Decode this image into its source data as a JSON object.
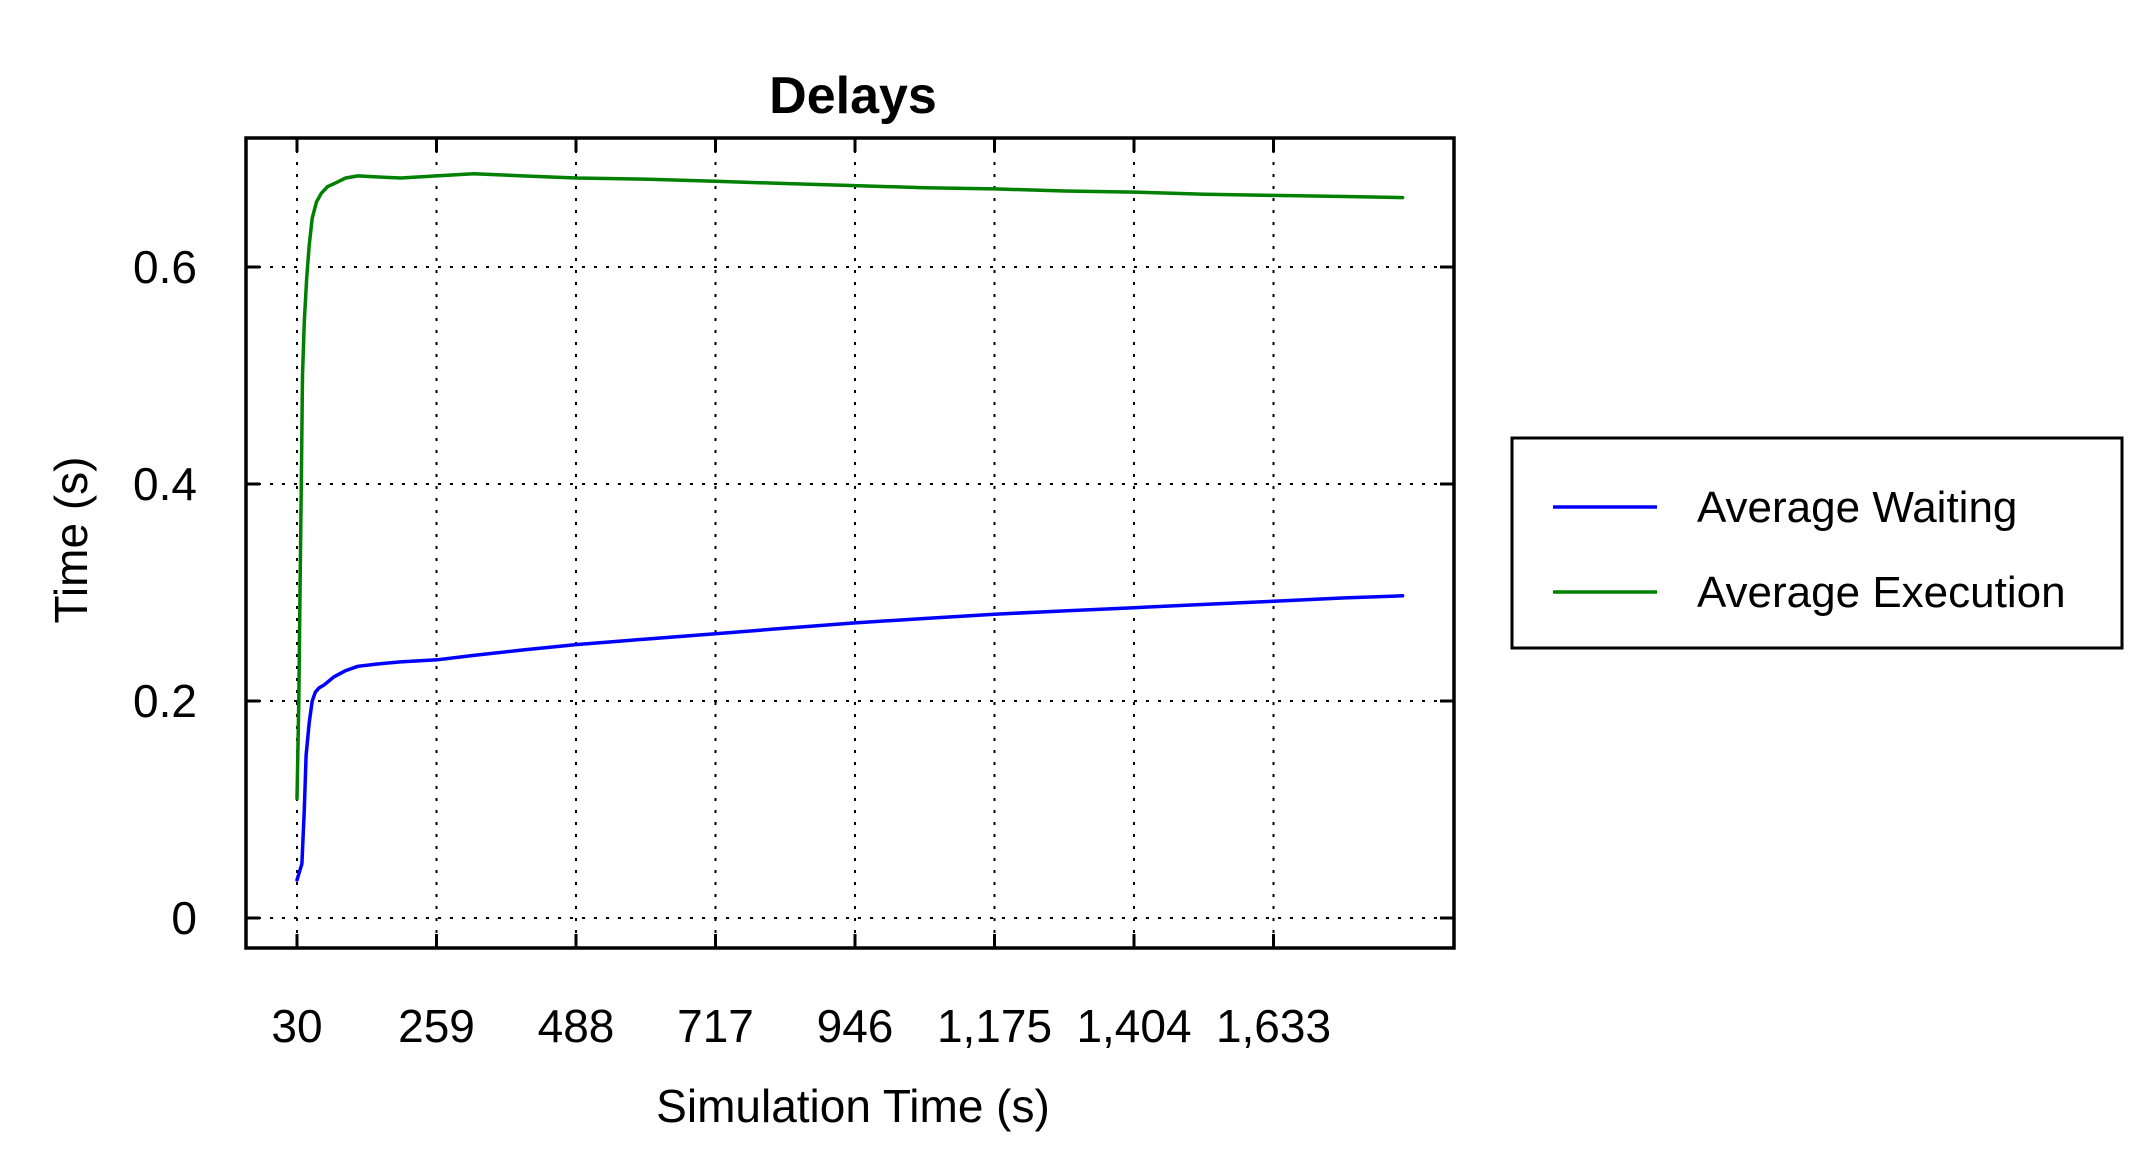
{
  "chart_data": {
    "type": "line",
    "title": "Delays",
    "xlabel": "Simulation Time (s)",
    "ylabel": "Time (s)",
    "xlim": [
      30,
      1850
    ],
    "ylim": [
      -0.03,
      0.72
    ],
    "x_ticks": [
      30,
      259,
      488,
      717,
      946,
      1175,
      1404,
      1633
    ],
    "x_tick_labels": [
      "30",
      "259",
      "488",
      "717",
      "946",
      "1,175",
      "1,404",
      "1,633"
    ],
    "y_ticks": [
      0,
      0.2,
      0.4,
      0.6
    ],
    "y_tick_labels": [
      "0",
      "0.2",
      "0.4",
      "0.6"
    ],
    "grid": true,
    "legend_position": "right-outside",
    "series": [
      {
        "name": "Average Waiting",
        "color": "#0000ff",
        "x": [
          30,
          38,
          42,
          45,
          50,
          55,
          60,
          66,
          75,
          90,
          110,
          130,
          160,
          200,
          260,
          320,
          400,
          488,
          600,
          717,
          830,
          946,
          1060,
          1175,
          1290,
          1404,
          1520,
          1633,
          1750,
          1845
        ],
        "y": [
          0.035,
          0.05,
          0.1,
          0.15,
          0.18,
          0.2,
          0.208,
          0.212,
          0.215,
          0.222,
          0.228,
          0.232,
          0.234,
          0.236,
          0.238,
          0.242,
          0.247,
          0.252,
          0.257,
          0.262,
          0.267,
          0.272,
          0.276,
          0.28,
          0.283,
          0.286,
          0.289,
          0.292,
          0.295,
          0.297
        ]
      },
      {
        "name": "Average Execution",
        "color": "#008000",
        "x": [
          30,
          33,
          35,
          37,
          39,
          42,
          46,
          50,
          55,
          62,
          70,
          80,
          95,
          110,
          130,
          160,
          200,
          259,
          320,
          400,
          488,
          600,
          717,
          830,
          946,
          1060,
          1175,
          1290,
          1404,
          1520,
          1633,
          1750,
          1845
        ],
        "y": [
          0.11,
          0.2,
          0.3,
          0.4,
          0.5,
          0.55,
          0.59,
          0.62,
          0.645,
          0.66,
          0.668,
          0.674,
          0.678,
          0.682,
          0.684,
          0.683,
          0.682,
          0.684,
          0.686,
          0.684,
          0.682,
          0.681,
          0.679,
          0.677,
          0.675,
          0.673,
          0.672,
          0.67,
          0.669,
          0.667,
          0.666,
          0.665,
          0.664
        ]
      }
    ]
  }
}
